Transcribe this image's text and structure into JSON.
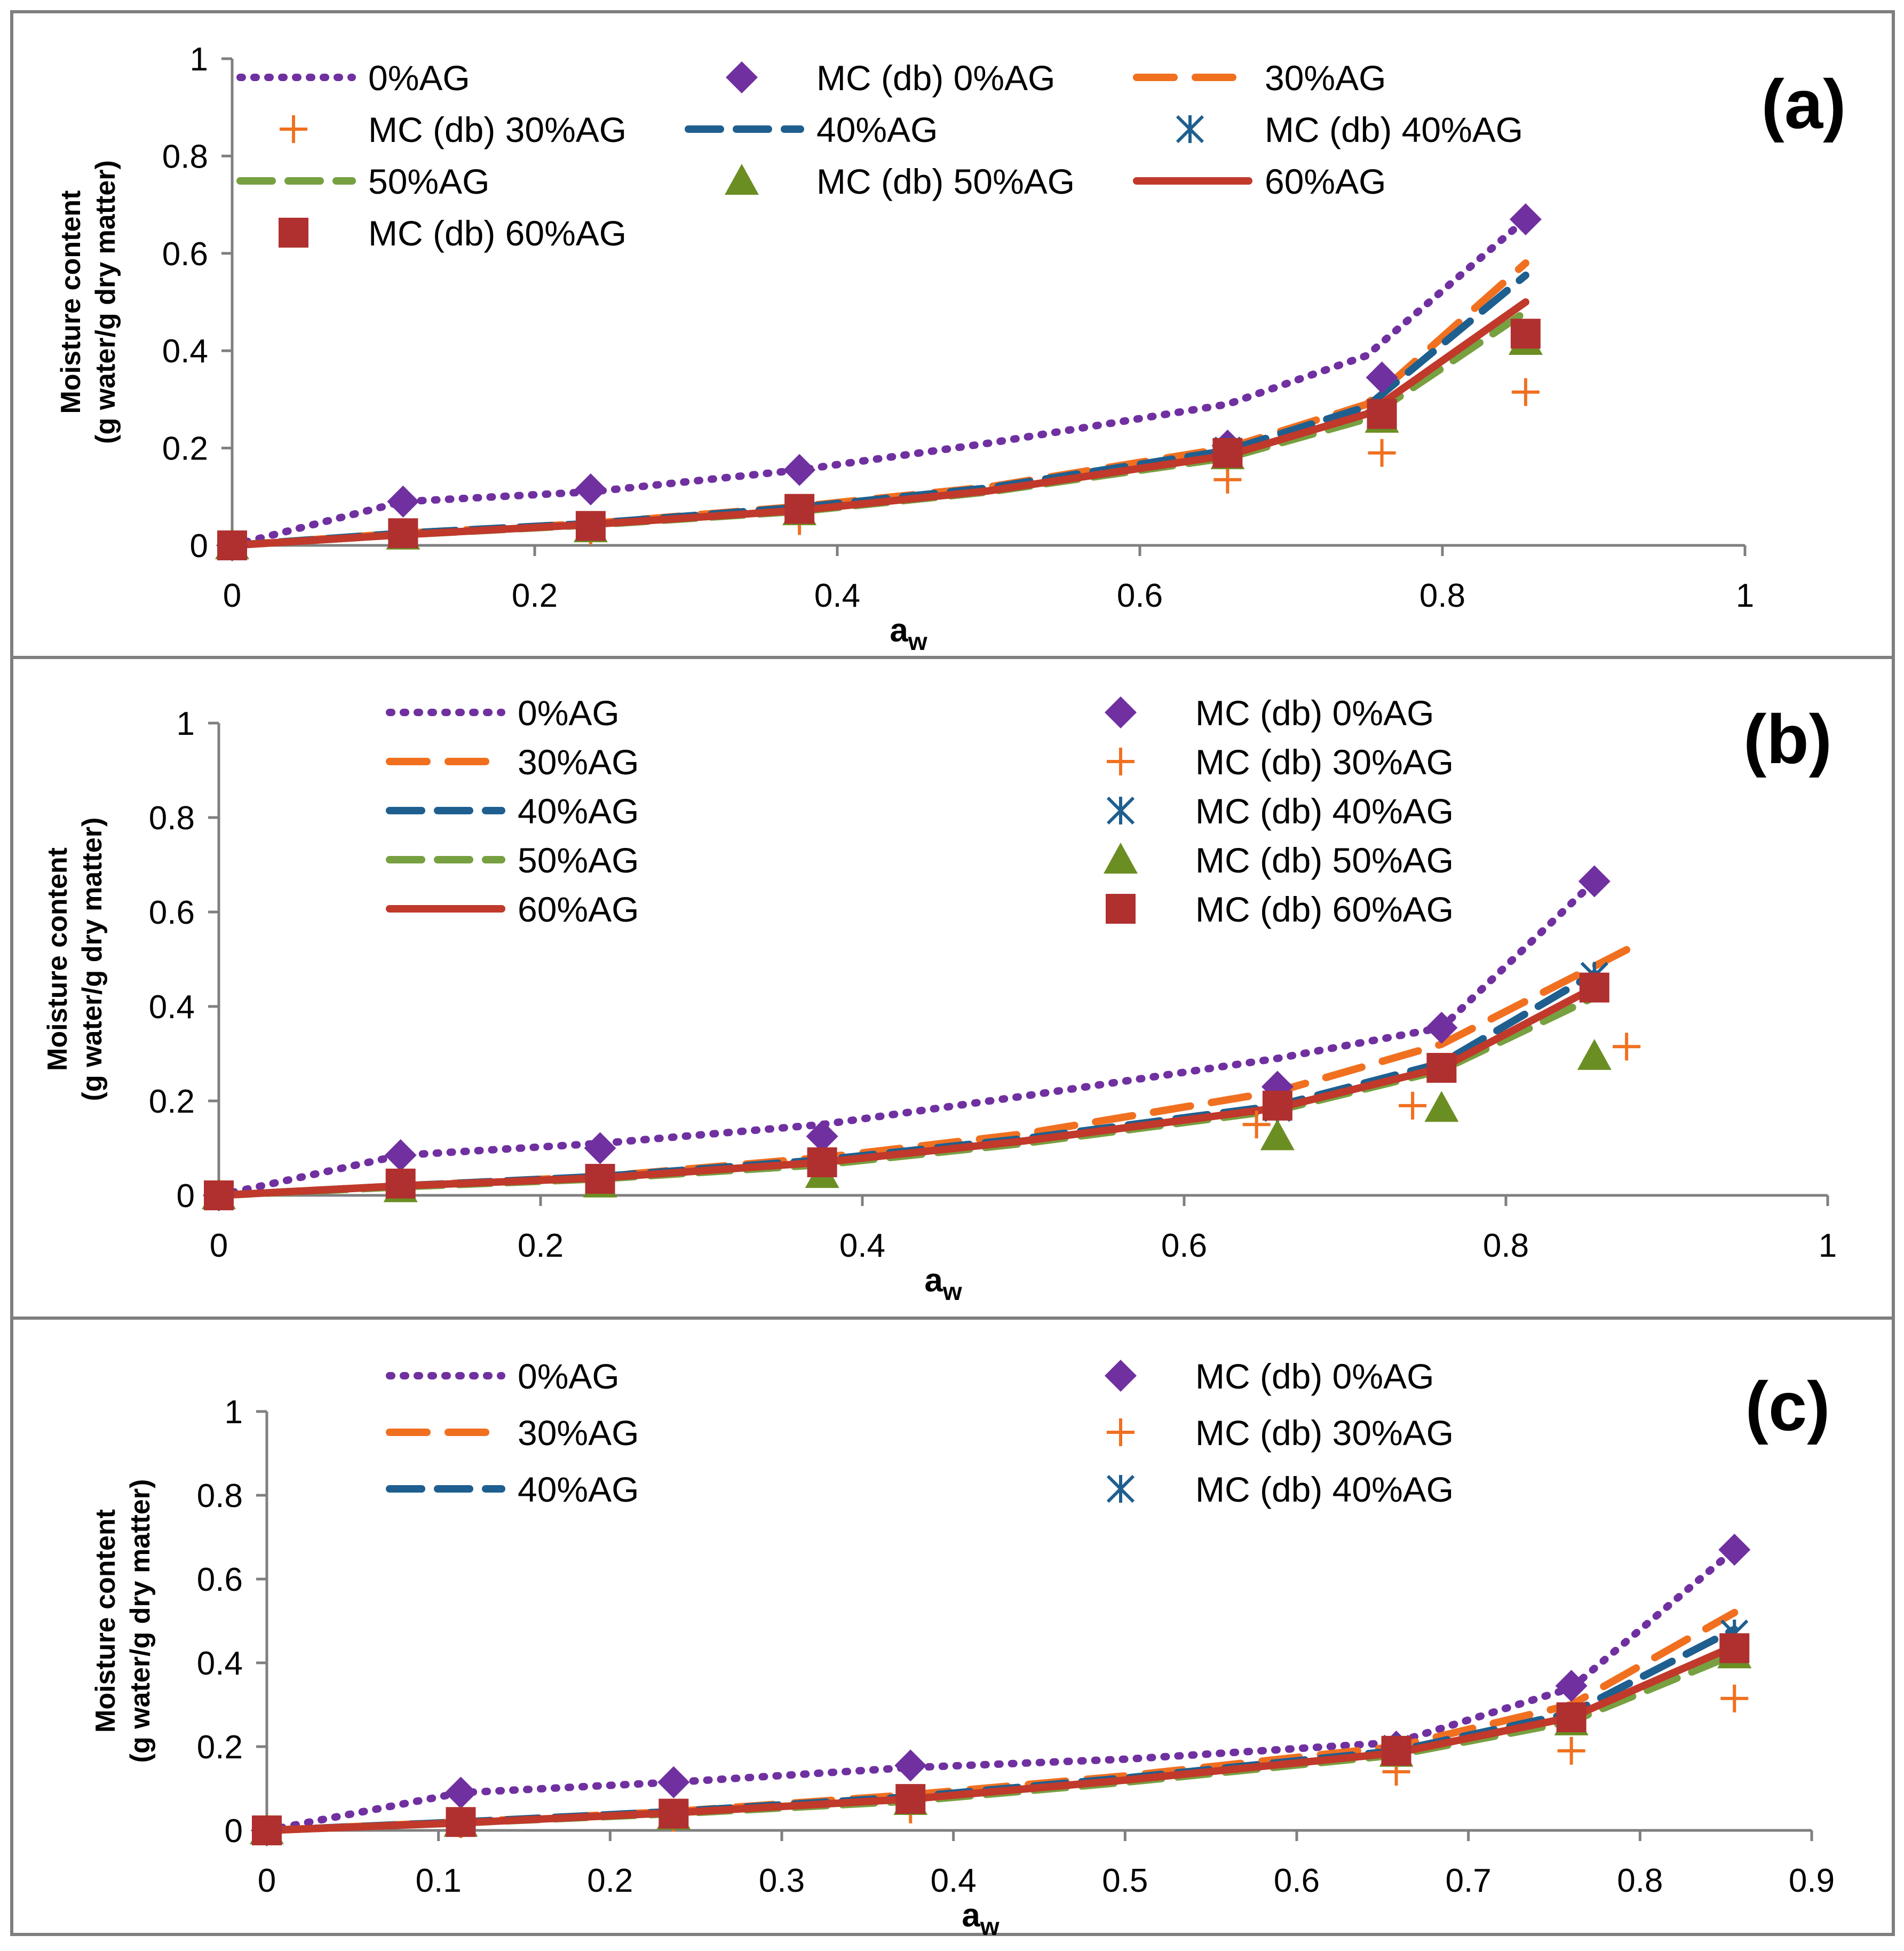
{
  "figure": {
    "title": ""
  },
  "legend_labels": {
    "0%AG": "0%AG",
    "30%AG": "30%AG",
    "40%AG": "40%AG",
    "50%AG": "50%AG",
    "60%AG": "60%AG",
    "MC0": "MC (db) 0%AG",
    "MC30": "MC (db) 30%AG",
    "MC40": "MC (db) 40%AG",
    "MC50": "MC (db) 50%AG",
    "MC60": "MC (db) 60%AG"
  },
  "series_style": {
    "0%AG": {
      "color": "#7030a0",
      "dash": "dotted"
    },
    "30%AG": {
      "color": "#f07020",
      "dash": "longdash"
    },
    "40%AG": {
      "color": "#1f5f8f",
      "dash": "dash",
      "marker_color": "#4bacc6"
    },
    "50%AG": {
      "color": "#77a040",
      "dash": "dash"
    },
    "60%AG": {
      "color": "#c0392b",
      "dash": "solid"
    },
    "MC0": {
      "color": "#7030a0",
      "marker": "diamond"
    },
    "MC30": {
      "color": "#f07020",
      "marker": "plus"
    },
    "MC40": {
      "color": "#1f5f8f",
      "marker": "asterisk"
    },
    "MC50": {
      "color": "#6b8e23",
      "marker": "triangle"
    },
    "MC60": {
      "color": "#b03030",
      "marker": "square"
    }
  },
  "chart_data": [
    {
      "type": "line",
      "panel_label": "(a)",
      "xlabel": "a",
      "xlabel_sub": "w",
      "ylabel": "Moisture content",
      "ylabel2": "(g water/g dry matter)",
      "xlim": [
        0,
        1
      ],
      "ylim": [
        0,
        1
      ],
      "xticks": [
        "0",
        "0.2",
        "0.4",
        "0.6",
        "0.8",
        "1"
      ],
      "xtick_values": [
        0,
        0.2,
        0.4,
        0.6,
        0.8,
        1
      ],
      "yticks": [
        "0",
        "0.2",
        "0.4",
        "0.6",
        "0.8",
        "1"
      ],
      "ytick_values": [
        0,
        0.2,
        0.4,
        0.6,
        0.8,
        1
      ],
      "legend_order": [
        "0%AG",
        "MC0",
        "30%AG",
        "MC30",
        "40%AG",
        "MC40",
        "50%AG",
        "MC50",
        "60%AG",
        "MC60"
      ],
      "legend_columns": 3,
      "lines": [
        {
          "key": "0%AG",
          "x": [
            0,
            0.113,
            0.237,
            0.375,
            0.5,
            0.658,
            0.75,
            0.855
          ],
          "y": [
            0,
            0.09,
            0.11,
            0.155,
            0.21,
            0.29,
            0.39,
            0.67
          ]
        },
        {
          "key": "30%AG",
          "x": [
            0,
            0.113,
            0.237,
            0.375,
            0.5,
            0.658,
            0.75,
            0.855
          ],
          "y": [
            0,
            0.025,
            0.045,
            0.08,
            0.12,
            0.2,
            0.29,
            0.58
          ]
        },
        {
          "key": "40%AG",
          "x": [
            0,
            0.113,
            0.237,
            0.375,
            0.5,
            0.658,
            0.75,
            0.855
          ],
          "y": [
            0,
            0.025,
            0.045,
            0.078,
            0.118,
            0.195,
            0.285,
            0.555
          ]
        },
        {
          "key": "50%AG",
          "x": [
            0,
            0.113,
            0.237,
            0.375,
            0.5,
            0.658,
            0.75,
            0.855
          ],
          "y": [
            0,
            0.022,
            0.042,
            0.07,
            0.11,
            0.18,
            0.26,
            0.48
          ]
        },
        {
          "key": "60%AG",
          "x": [
            0,
            0.113,
            0.237,
            0.375,
            0.5,
            0.658,
            0.75,
            0.855
          ],
          "y": [
            0,
            0.022,
            0.043,
            0.072,
            0.112,
            0.185,
            0.27,
            0.5
          ]
        }
      ],
      "points": [
        {
          "key": "MC0",
          "x": [
            0,
            0.113,
            0.237,
            0.375,
            0.658,
            0.76,
            0.855
          ],
          "y": [
            0,
            0.09,
            0.115,
            0.155,
            0.205,
            0.345,
            0.67
          ]
        },
        {
          "key": "MC30",
          "x": [
            0,
            0.113,
            0.237,
            0.375,
            0.658,
            0.76,
            0.855
          ],
          "y": [
            0,
            0.02,
            0.03,
            0.05,
            0.135,
            0.19,
            0.315
          ]
        },
        {
          "key": "MC40",
          "x": [
            0,
            0.113,
            0.237,
            0.375,
            0.658,
            0.76,
            0.855
          ],
          "y": [
            0,
            0.025,
            0.04,
            0.075,
            0.195,
            0.265,
            0.42
          ]
        },
        {
          "key": "MC50",
          "x": [
            0,
            0.113,
            0.237,
            0.375,
            0.658,
            0.76,
            0.855
          ],
          "y": [
            0,
            0.02,
            0.035,
            0.07,
            0.185,
            0.26,
            0.42
          ]
        },
        {
          "key": "MC60",
          "x": [
            0,
            0.113,
            0.237,
            0.375,
            0.658,
            0.76,
            0.855
          ],
          "y": [
            0,
            0.025,
            0.04,
            0.075,
            0.19,
            0.27,
            0.435
          ]
        }
      ]
    },
    {
      "type": "line",
      "panel_label": "(b)",
      "xlabel": "a",
      "xlabel_sub": "w",
      "ylabel": "Moisture content",
      "ylabel2": "(g water/g dry matter)",
      "xlim": [
        0,
        1
      ],
      "ylim": [
        0,
        1
      ],
      "xticks": [
        "0",
        "0.2",
        "0.4",
        "0.6",
        "0.8",
        "1"
      ],
      "xtick_values": [
        0,
        0.2,
        0.4,
        0.6,
        0.8,
        1
      ],
      "yticks": [
        "0",
        "0.2",
        "0.4",
        "0.6",
        "0.8",
        "1"
      ],
      "ytick_values": [
        0,
        0.2,
        0.4,
        0.6,
        0.8,
        1
      ],
      "legend_order": [
        "0%AG",
        "MC0",
        "30%AG",
        "MC30",
        "40%AG",
        "MC40",
        "50%AG",
        "MC50",
        "60%AG",
        "MC60"
      ],
      "legend_columns": 2,
      "lines": [
        {
          "key": "0%AG",
          "x": [
            0,
            0.113,
            0.237,
            0.375,
            0.5,
            0.658,
            0.76,
            0.855
          ],
          "y": [
            0,
            0.085,
            0.11,
            0.15,
            0.21,
            0.29,
            0.355,
            0.665
          ]
        },
        {
          "key": "30%AG",
          "x": [
            0,
            0.113,
            0.237,
            0.375,
            0.5,
            0.658,
            0.76,
            0.875
          ],
          "y": [
            0,
            0.02,
            0.04,
            0.08,
            0.13,
            0.22,
            0.32,
            0.52
          ]
        },
        {
          "key": "40%AG",
          "x": [
            0,
            0.113,
            0.237,
            0.375,
            0.5,
            0.658,
            0.76,
            0.855
          ],
          "y": [
            0,
            0.02,
            0.04,
            0.075,
            0.12,
            0.19,
            0.28,
            0.47
          ]
        },
        {
          "key": "50%AG",
          "x": [
            0,
            0.113,
            0.237,
            0.375,
            0.5,
            0.658,
            0.76,
            0.855
          ],
          "y": [
            0,
            0.018,
            0.035,
            0.065,
            0.11,
            0.18,
            0.265,
            0.42
          ]
        },
        {
          "key": "60%AG",
          "x": [
            0,
            0.113,
            0.237,
            0.375,
            0.5,
            0.658,
            0.76,
            0.855
          ],
          "y": [
            0,
            0.02,
            0.037,
            0.07,
            0.115,
            0.185,
            0.27,
            0.44
          ]
        }
      ],
      "points": [
        {
          "key": "MC0",
          "x": [
            0,
            0.113,
            0.237,
            0.375,
            0.658,
            0.76,
            0.855
          ],
          "y": [
            0,
            0.085,
            0.1,
            0.125,
            0.23,
            0.355,
            0.665
          ]
        },
        {
          "key": "MC30",
          "x": [
            0,
            0.113,
            0.237,
            0.375,
            0.645,
            0.742,
            0.875
          ],
          "y": [
            0,
            0.02,
            0.03,
            0.055,
            0.15,
            0.19,
            0.315
          ]
        },
        {
          "key": "MC40",
          "x": [
            0,
            0.113,
            0.237,
            0.375,
            0.658,
            0.76,
            0.855
          ],
          "y": [
            0,
            0.02,
            0.035,
            0.07,
            0.185,
            0.27,
            0.465
          ]
        },
        {
          "key": "MC50",
          "x": [
            0,
            0.113,
            0.237,
            0.375,
            0.658,
            0.76,
            0.855
          ],
          "y": [
            0,
            0.015,
            0.025,
            0.045,
            0.125,
            0.185,
            0.295
          ]
        },
        {
          "key": "MC60",
          "x": [
            0,
            0.113,
            0.237,
            0.375,
            0.658,
            0.76,
            0.855
          ],
          "y": [
            0,
            0.025,
            0.035,
            0.07,
            0.19,
            0.27,
            0.44
          ]
        }
      ]
    },
    {
      "type": "line",
      "panel_label": "(c)",
      "xlabel": "a",
      "xlabel_sub": "w",
      "ylabel": "Moisture content",
      "ylabel2": "(g water/g dry matter)",
      "xlim": [
        0,
        0.9
      ],
      "ylim": [
        0,
        1
      ],
      "xticks": [
        "0",
        "0.1",
        "0.2",
        "0.3",
        "0.4",
        "0.5",
        "0.6",
        "0.7",
        "0.8",
        "0.9"
      ],
      "xtick_values": [
        0,
        0.1,
        0.2,
        0.3,
        0.4,
        0.5,
        0.6,
        0.7,
        0.8,
        0.9
      ],
      "yticks": [
        "0",
        "0.2",
        "0.4",
        "0.6",
        "0.8",
        "1"
      ],
      "ytick_values": [
        0,
        0.2,
        0.4,
        0.6,
        0.8,
        1
      ],
      "legend_order": [
        "0%AG",
        "MC0",
        "30%AG",
        "MC30",
        "40%AG",
        "MC40"
      ],
      "legend_columns": 2,
      "lines": [
        {
          "key": "0%AG",
          "x": [
            0,
            0.113,
            0.237,
            0.375,
            0.5,
            0.658,
            0.76,
            0.855
          ],
          "y": [
            0,
            0.09,
            0.115,
            0.15,
            0.17,
            0.21,
            0.34,
            0.67
          ]
        },
        {
          "key": "30%AG",
          "x": [
            0,
            0.113,
            0.237,
            0.375,
            0.5,
            0.658,
            0.76,
            0.855
          ],
          "y": [
            0,
            0.02,
            0.045,
            0.085,
            0.13,
            0.2,
            0.3,
            0.52
          ]
        },
        {
          "key": "40%AG",
          "x": [
            0,
            0.113,
            0.237,
            0.375,
            0.5,
            0.658,
            0.76,
            0.855
          ],
          "y": [
            0,
            0.02,
            0.045,
            0.08,
            0.125,
            0.19,
            0.28,
            0.48
          ]
        },
        {
          "key": "50%AG",
          "x": [
            0,
            0.113,
            0.237,
            0.375,
            0.5,
            0.658,
            0.76,
            0.855
          ],
          "y": [
            0,
            0.018,
            0.04,
            0.07,
            0.115,
            0.18,
            0.26,
            0.42
          ]
        },
        {
          "key": "60%AG",
          "x": [
            0,
            0.113,
            0.237,
            0.375,
            0.5,
            0.658,
            0.76,
            0.855
          ],
          "y": [
            0,
            0.018,
            0.042,
            0.075,
            0.12,
            0.185,
            0.27,
            0.44
          ]
        }
      ],
      "points": [
        {
          "key": "MC0",
          "x": [
            0,
            0.113,
            0.237,
            0.375,
            0.658,
            0.76,
            0.855
          ],
          "y": [
            0,
            0.09,
            0.115,
            0.155,
            0.2,
            0.345,
            0.67
          ]
        },
        {
          "key": "MC30",
          "x": [
            0,
            0.113,
            0.237,
            0.375,
            0.658,
            0.76,
            0.855
          ],
          "y": [
            0,
            0.015,
            0.03,
            0.05,
            0.14,
            0.19,
            0.315
          ]
        },
        {
          "key": "MC40",
          "x": [
            0,
            0.113,
            0.237,
            0.375,
            0.658,
            0.76,
            0.855
          ],
          "y": [
            0,
            0.02,
            0.04,
            0.075,
            0.195,
            0.27,
            0.47
          ]
        },
        {
          "key": "MC50",
          "x": [
            0,
            0.113,
            0.237,
            0.375,
            0.658,
            0.76,
            0.855
          ],
          "y": [
            0,
            0.018,
            0.035,
            0.07,
            0.185,
            0.26,
            0.42
          ]
        },
        {
          "key": "MC60",
          "x": [
            0,
            0.113,
            0.237,
            0.375,
            0.658,
            0.76,
            0.855
          ],
          "y": [
            0,
            0.02,
            0.04,
            0.075,
            0.19,
            0.27,
            0.435
          ]
        }
      ]
    }
  ]
}
